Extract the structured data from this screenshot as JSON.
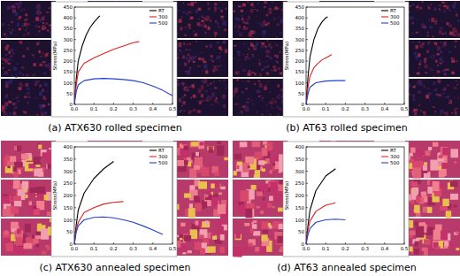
{
  "chart_data": [
    {
      "type": "line",
      "title": "(a) ATX630 rolled specimen",
      "y_label": "Stress(MPa)",
      "legend": "upper right",
      "grid": false,
      "xlim": [
        0,
        0.5
      ],
      "ylim": [
        0,
        450
      ],
      "xticks": [
        {
          "value": 0,
          "label": "0.0"
        },
        {
          "value": 0.1,
          "label": "0.1"
        },
        {
          "value": 0.2,
          "label": "0.2"
        },
        {
          "value": 0.3,
          "label": "0.3"
        },
        {
          "value": 0.4,
          "label": "0.4"
        },
        {
          "value": 0.5,
          "label": "0.5"
        }
      ],
      "yticks": [
        0,
        50,
        100,
        150,
        200,
        250,
        300,
        350,
        400,
        450
      ],
      "series": [
        {
          "name": "RT",
          "color": "#000000",
          "x": [
            0,
            0.01,
            0.02,
            0.04,
            0.06,
            0.08,
            0.1,
            0.12,
            0.13
          ],
          "values": [
            0,
            120,
            200,
            270,
            320,
            355,
            380,
            400,
            410
          ]
        },
        {
          "name": "300",
          "color": "#e02020",
          "x": [
            0,
            0.01,
            0.02,
            0.05,
            0.1,
            0.15,
            0.2,
            0.25,
            0.3,
            0.33
          ],
          "values": [
            0,
            90,
            150,
            190,
            215,
            235,
            255,
            270,
            285,
            290
          ]
        },
        {
          "name": "500",
          "color": "#2040d0",
          "x": [
            0,
            0.01,
            0.02,
            0.05,
            0.1,
            0.15,
            0.2,
            0.25,
            0.3,
            0.35,
            0.4,
            0.45,
            0.5
          ],
          "values": [
            0,
            60,
            90,
            110,
            118,
            120,
            118,
            115,
            110,
            100,
            85,
            65,
            40
          ]
        }
      ]
    },
    {
      "type": "line",
      "title": "(b) AT63 rolled specimen",
      "y_label": "Stress(MPa)",
      "legend": "upper right",
      "grid": false,
      "xlim": [
        0,
        0.5
      ],
      "ylim": [
        0,
        450
      ],
      "xticks": [
        {
          "value": 0,
          "label": "0.0"
        },
        {
          "value": 0.1,
          "label": "0.1"
        },
        {
          "value": 0.2,
          "label": "0.2"
        },
        {
          "value": 0.3,
          "label": "0.3"
        },
        {
          "value": 0.4,
          "label": "0.4"
        },
        {
          "value": 0.5,
          "label": "0.5"
        }
      ],
      "yticks": [
        0,
        50,
        100,
        150,
        200,
        250,
        300,
        350,
        400,
        450
      ],
      "series": [
        {
          "name": "RT",
          "color": "#000000",
          "x": [
            0,
            0.01,
            0.02,
            0.04,
            0.06,
            0.08,
            0.1,
            0.11
          ],
          "values": [
            0,
            130,
            220,
            300,
            350,
            380,
            400,
            405
          ]
        },
        {
          "name": "300",
          "color": "#e02020",
          "x": [
            0,
            0.01,
            0.02,
            0.04,
            0.06,
            0.08,
            0.1,
            0.12,
            0.13
          ],
          "values": [
            0,
            80,
            130,
            170,
            190,
            205,
            215,
            225,
            230
          ]
        },
        {
          "name": "500",
          "color": "#2040d0",
          "x": [
            0,
            0.01,
            0.02,
            0.05,
            0.1,
            0.15,
            0.2
          ],
          "values": [
            0,
            50,
            80,
            100,
            108,
            110,
            110
          ]
        }
      ]
    },
    {
      "type": "line",
      "title": "(c) ATX630 annealed specimen",
      "y_label": "Stress(MPa)",
      "legend": "upper right",
      "grid": false,
      "xlim": [
        0,
        0.5
      ],
      "ylim": [
        0,
        400
      ],
      "xticks": [
        {
          "value": 0,
          "label": "0.0"
        },
        {
          "value": 0.1,
          "label": "0.1"
        },
        {
          "value": 0.2,
          "label": "0.2"
        },
        {
          "value": 0.3,
          "label": "0.3"
        },
        {
          "value": 0.4,
          "label": "0.4"
        },
        {
          "value": 0.5,
          "label": "0.5"
        }
      ],
      "yticks": [
        0,
        50,
        100,
        150,
        200,
        250,
        300,
        350,
        400
      ],
      "series": [
        {
          "name": "RT",
          "color": "#000000",
          "x": [
            0,
            0.01,
            0.02,
            0.05,
            0.1,
            0.15,
            0.2
          ],
          "values": [
            0,
            80,
            140,
            210,
            270,
            310,
            340
          ]
        },
        {
          "name": "300",
          "color": "#e02020",
          "x": [
            0,
            0.01,
            0.02,
            0.05,
            0.1,
            0.15,
            0.2,
            0.25
          ],
          "values": [
            0,
            60,
            90,
            130,
            150,
            165,
            172,
            175
          ]
        },
        {
          "name": "500",
          "color": "#2040d0",
          "x": [
            0,
            0.01,
            0.02,
            0.05,
            0.1,
            0.15,
            0.2,
            0.25,
            0.3,
            0.35,
            0.4,
            0.45
          ],
          "values": [
            0,
            50,
            75,
            100,
            110,
            112,
            108,
            100,
            90,
            75,
            58,
            40
          ]
        }
      ]
    },
    {
      "type": "line",
      "title": "(d) AT63 annealed specimen",
      "y_label": "Stress(MPa)",
      "legend": "upper right",
      "grid": false,
      "xlim": [
        0,
        0.5
      ],
      "ylim": [
        0,
        400
      ],
      "xticks": [
        {
          "value": 0,
          "label": "0.0"
        },
        {
          "value": 0.1,
          "label": "0.1"
        },
        {
          "value": 0.2,
          "label": "0.2"
        },
        {
          "value": 0.3,
          "label": "0.3"
        },
        {
          "value": 0.4,
          "label": "0.4"
        },
        {
          "value": 0.5,
          "label": "0.5"
        }
      ],
      "yticks": [
        0,
        50,
        100,
        150,
        200,
        250,
        300,
        350,
        400
      ],
      "series": [
        {
          "name": "RT",
          "color": "#000000",
          "x": [
            0,
            0.01,
            0.02,
            0.05,
            0.1,
            0.15
          ],
          "values": [
            0,
            80,
            140,
            220,
            280,
            310
          ]
        },
        {
          "name": "300",
          "color": "#e02020",
          "x": [
            0,
            0.01,
            0.02,
            0.05,
            0.1,
            0.15
          ],
          "values": [
            0,
            60,
            95,
            135,
            160,
            170
          ]
        },
        {
          "name": "500",
          "color": "#2040d0",
          "x": [
            0,
            0.01,
            0.02,
            0.05,
            0.1,
            0.15,
            0.2
          ],
          "values": [
            0,
            40,
            65,
            90,
            100,
            103,
            100
          ]
        }
      ]
    }
  ]
}
